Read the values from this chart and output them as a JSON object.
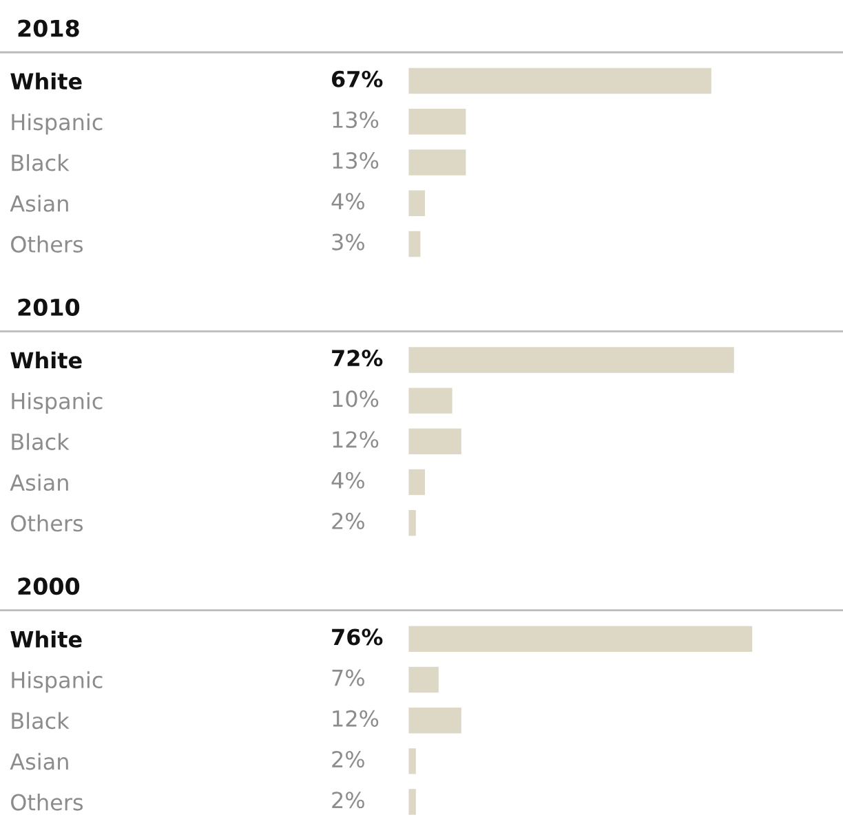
{
  "chart_data": [
    {
      "type": "bar",
      "orientation": "horizontal",
      "title": "2018",
      "categories": [
        "White",
        "Hispanic",
        "Black",
        "Asian",
        "Others"
      ],
      "values": [
        67,
        13,
        13,
        4,
        3
      ],
      "value_labels": [
        "67%",
        "13%",
        "13%",
        "4%",
        "3%"
      ],
      "color": "#ddd8c6",
      "tick_labels": "y"
    },
    {
      "type": "bar",
      "orientation": "horizontal",
      "title": "2010",
      "categories": [
        "White",
        "Hispanic",
        "Black",
        "Asian",
        "Others"
      ],
      "values": [
        72,
        10,
        12,
        4,
        2
      ],
      "value_labels": [
        "72%",
        "10%",
        "12%",
        "4%",
        "2%"
      ],
      "color": "#ddd8c6",
      "tick_labels": "y"
    },
    {
      "type": "bar",
      "orientation": "horizontal",
      "title": "2000",
      "categories": [
        "White",
        "Hispanic",
        "Black",
        "Asian",
        "Others"
      ],
      "values": [
        76,
        7,
        12,
        2,
        2
      ],
      "value_labels": [
        "76%",
        "7%",
        "12%",
        "2%",
        "2%"
      ],
      "color": "#ddd8c6",
      "tick_labels": "y"
    }
  ]
}
